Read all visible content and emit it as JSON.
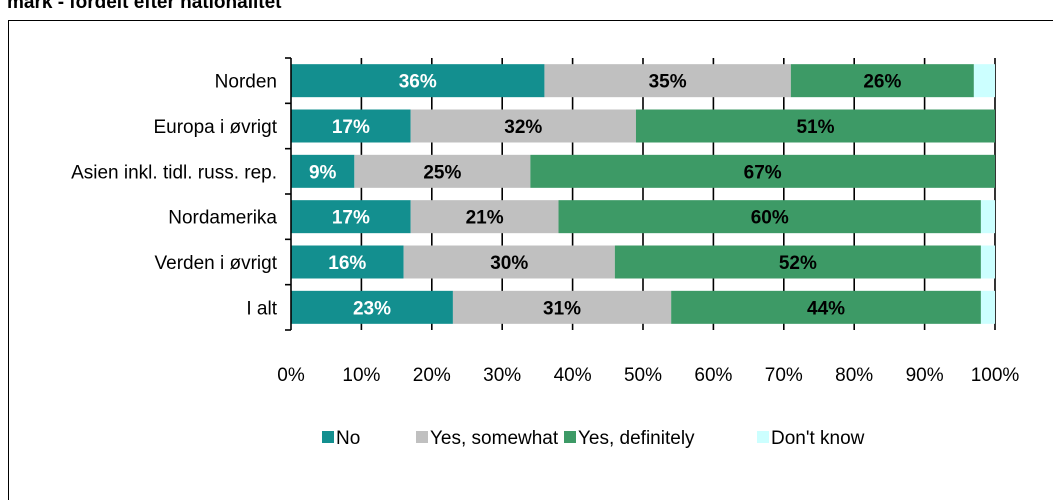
{
  "title": "mark - fordelt efter nationalitet",
  "chart_data": {
    "type": "bar",
    "orientation": "horizontal",
    "stacked": "percent",
    "categories": [
      "Norden",
      "Europa i øvrigt",
      "Asien inkl. tidl. russ. rep.",
      "Nordamerika",
      "Verden i øvrigt",
      "I alt"
    ],
    "series": [
      {
        "name": "No",
        "color": "#138f8f",
        "values": [
          36,
          17,
          9,
          17,
          16,
          23
        ],
        "labels": [
          "36%",
          "17%",
          "9%",
          "17%",
          "16%",
          "23%"
        ]
      },
      {
        "name": "Yes, somewhat",
        "color": "#c0c0c0",
        "values": [
          35,
          32,
          25,
          21,
          30,
          31
        ],
        "labels": [
          "35%",
          "32%",
          "25%",
          "21%",
          "30%",
          "31%"
        ]
      },
      {
        "name": "Yes, definitely",
        "color": "#3d9a66",
        "values": [
          26,
          51,
          67,
          60,
          52,
          44
        ],
        "labels": [
          "26%",
          "51%",
          "67%",
          "60%",
          "52%",
          "44%"
        ]
      },
      {
        "name": "Don't know",
        "color": "#ccffff",
        "values": [
          3,
          1,
          0,
          2,
          2,
          2
        ],
        "labels": [
          "",
          "",
          "",
          "",
          "",
          ""
        ]
      }
    ],
    "x_ticks": [
      "0%",
      "10%",
      "20%",
      "30%",
      "40%",
      "50%",
      "60%",
      "70%",
      "80%",
      "90%",
      "100%"
    ],
    "xlim": [
      0,
      100
    ],
    "grid": true,
    "legend_position": "bottom"
  }
}
